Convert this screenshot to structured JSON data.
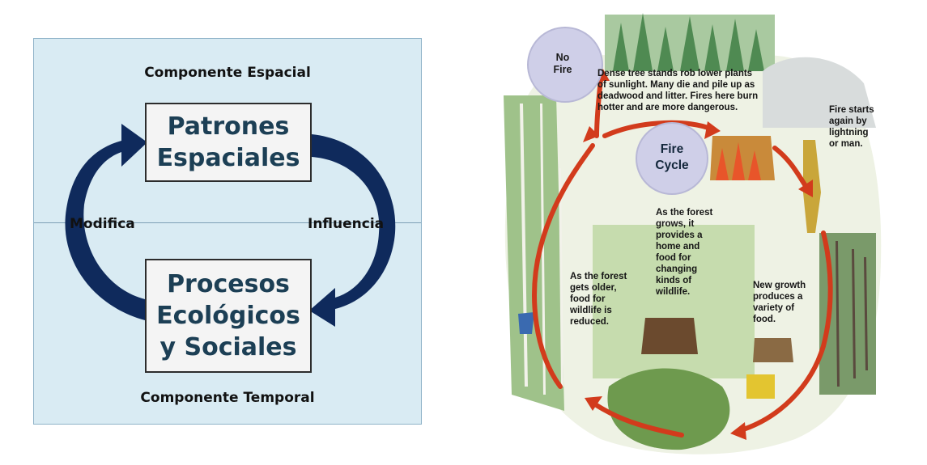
{
  "left_diagram": {
    "top_label": "Componente Espacial",
    "bottom_label": "Componente Temporal",
    "left_arrow_label": "Modifica",
    "right_arrow_label": "Influencia",
    "top_box": [
      "Patrones",
      "Espaciales"
    ],
    "bottom_box": [
      "Procesos",
      "Ecológicos",
      "y Sociales"
    ],
    "colors": {
      "panel": "#d9ebf3",
      "arrow": "#0f2a5c",
      "box_text": "#1c3f55"
    }
  },
  "fire_cycle": {
    "no_fire_label": "No\nFire",
    "center_label": "Fire\nCycle",
    "dense_text": "Dense tree stands rob lower plants\nof sunlight.  Many die and pile up as\ndeadwood and litter.  Fires here burn\nhotter and are more dangerous.",
    "fire_starts_text": "Fire starts\nagain by\nlightning\nor man.",
    "forest_grows_text": "As the forest\ngrows, it\nprovides a\nhome and\nfood for\nchanging\nkinds of\nwildlife.",
    "forest_older_text": "As the forest\ngets older,\nfood for\nwildlife is\nreduced.",
    "new_growth_text": "New growth\nproduces a\nvariety of\nfood.",
    "colors": {
      "arrow": "#d23b1c",
      "bubble": "#cfcfe8"
    }
  }
}
